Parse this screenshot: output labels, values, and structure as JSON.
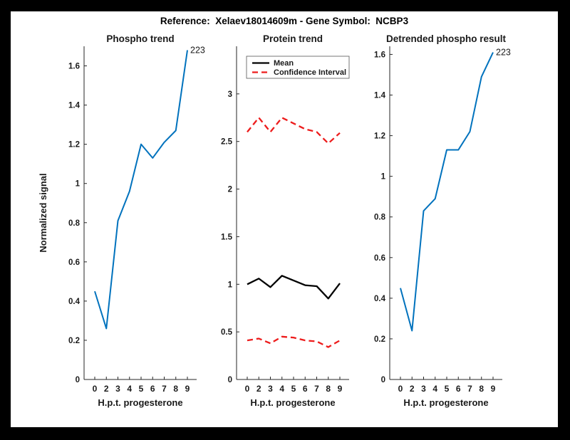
{
  "figure": {
    "title": "Reference:  Xelaev18014609m - Gene Symbol:  NCBP3",
    "background": "#ffffff",
    "frame_color": "#000000"
  },
  "colors": {
    "line_blue": "#0072bd",
    "line_red": "#ed1c1c",
    "line_black": "#000000",
    "axis": "#262626",
    "text": "#1a1a1a"
  },
  "chart_data": [
    {
      "type": "line",
      "title": "Phospho trend",
      "xlabel": "H.p.t. progesterone",
      "ylabel": "Normalized signal",
      "categories": [
        "0",
        "2",
        "3",
        "4",
        "5",
        "6",
        "7",
        "8",
        "9"
      ],
      "series": [
        {
          "name": "phospho-signal",
          "color": "#0072bd",
          "style": "solid",
          "values": [
            0.45,
            0.26,
            0.81,
            0.96,
            1.2,
            1.13,
            1.21,
            1.27,
            1.68
          ]
        }
      ],
      "ylim": [
        0,
        1.7
      ],
      "ytick_values": [
        0,
        0.2,
        0.4,
        0.6,
        0.8,
        1.0,
        1.2,
        1.4,
        1.6
      ],
      "ytick_labels": [
        "0",
        "0.2",
        "0.4",
        "0.6",
        "0.8",
        "1",
        "1.2",
        "1.4",
        "1.6"
      ],
      "grid": false,
      "annotation": {
        "text": "223",
        "point_index": 8
      }
    },
    {
      "type": "line",
      "title": "Protein trend",
      "xlabel": "H.p.t. progesterone",
      "ylabel": "",
      "categories": [
        "0",
        "2",
        "3",
        "4",
        "5",
        "6",
        "7",
        "8",
        "9"
      ],
      "series": [
        {
          "name": "mean",
          "color": "#000000",
          "style": "solid",
          "values": [
            1.0,
            1.06,
            0.97,
            1.09,
            1.04,
            0.99,
            0.98,
            0.85,
            1.01
          ]
        },
        {
          "name": "confidence-interval-upper",
          "color": "#ed1c1c",
          "style": "dashed",
          "values": [
            2.6,
            2.75,
            2.6,
            2.75,
            2.69,
            2.63,
            2.6,
            2.48,
            2.59
          ]
        },
        {
          "name": "confidence-interval-lower",
          "color": "#ed1c1c",
          "style": "dashed",
          "values": [
            0.41,
            0.43,
            0.38,
            0.45,
            0.44,
            0.41,
            0.4,
            0.34,
            0.41
          ]
        }
      ],
      "ylim": [
        0,
        3.5
      ],
      "ytick_values": [
        0,
        0.5,
        1.0,
        1.5,
        2.0,
        2.5,
        3.0
      ],
      "ytick_labels": [
        "0",
        "0.5",
        "1",
        "1.5",
        "2",
        "2.5",
        "3"
      ],
      "grid": false,
      "legend": {
        "position": "northwest",
        "entries": [
          {
            "label": "Mean",
            "color": "#000000",
            "style": "solid"
          },
          {
            "label": "Confidence Interval",
            "color": "#ed1c1c",
            "style": "dashed"
          }
        ]
      }
    },
    {
      "type": "line",
      "title": "Detrended phospho result",
      "xlabel": "H.p.t. progesterone",
      "ylabel": "",
      "categories": [
        "0",
        "2",
        "3",
        "4",
        "5",
        "6",
        "7",
        "8",
        "9"
      ],
      "series": [
        {
          "name": "detrended-phospho-signal",
          "color": "#0072bd",
          "style": "solid",
          "values": [
            0.45,
            0.24,
            0.83,
            0.89,
            1.13,
            1.13,
            1.22,
            1.49,
            1.61
          ]
        }
      ],
      "ylim": [
        0,
        1.64
      ],
      "ytick_values": [
        0,
        0.2,
        0.4,
        0.6,
        0.8,
        1.0,
        1.2,
        1.4,
        1.6
      ],
      "ytick_labels": [
        "0",
        "0.2",
        "0.4",
        "0.6",
        "0.8",
        "1",
        "1.2",
        "1.4",
        "1.6"
      ],
      "grid": false,
      "annotation": {
        "text": "223",
        "point_index": 8
      }
    }
  ]
}
